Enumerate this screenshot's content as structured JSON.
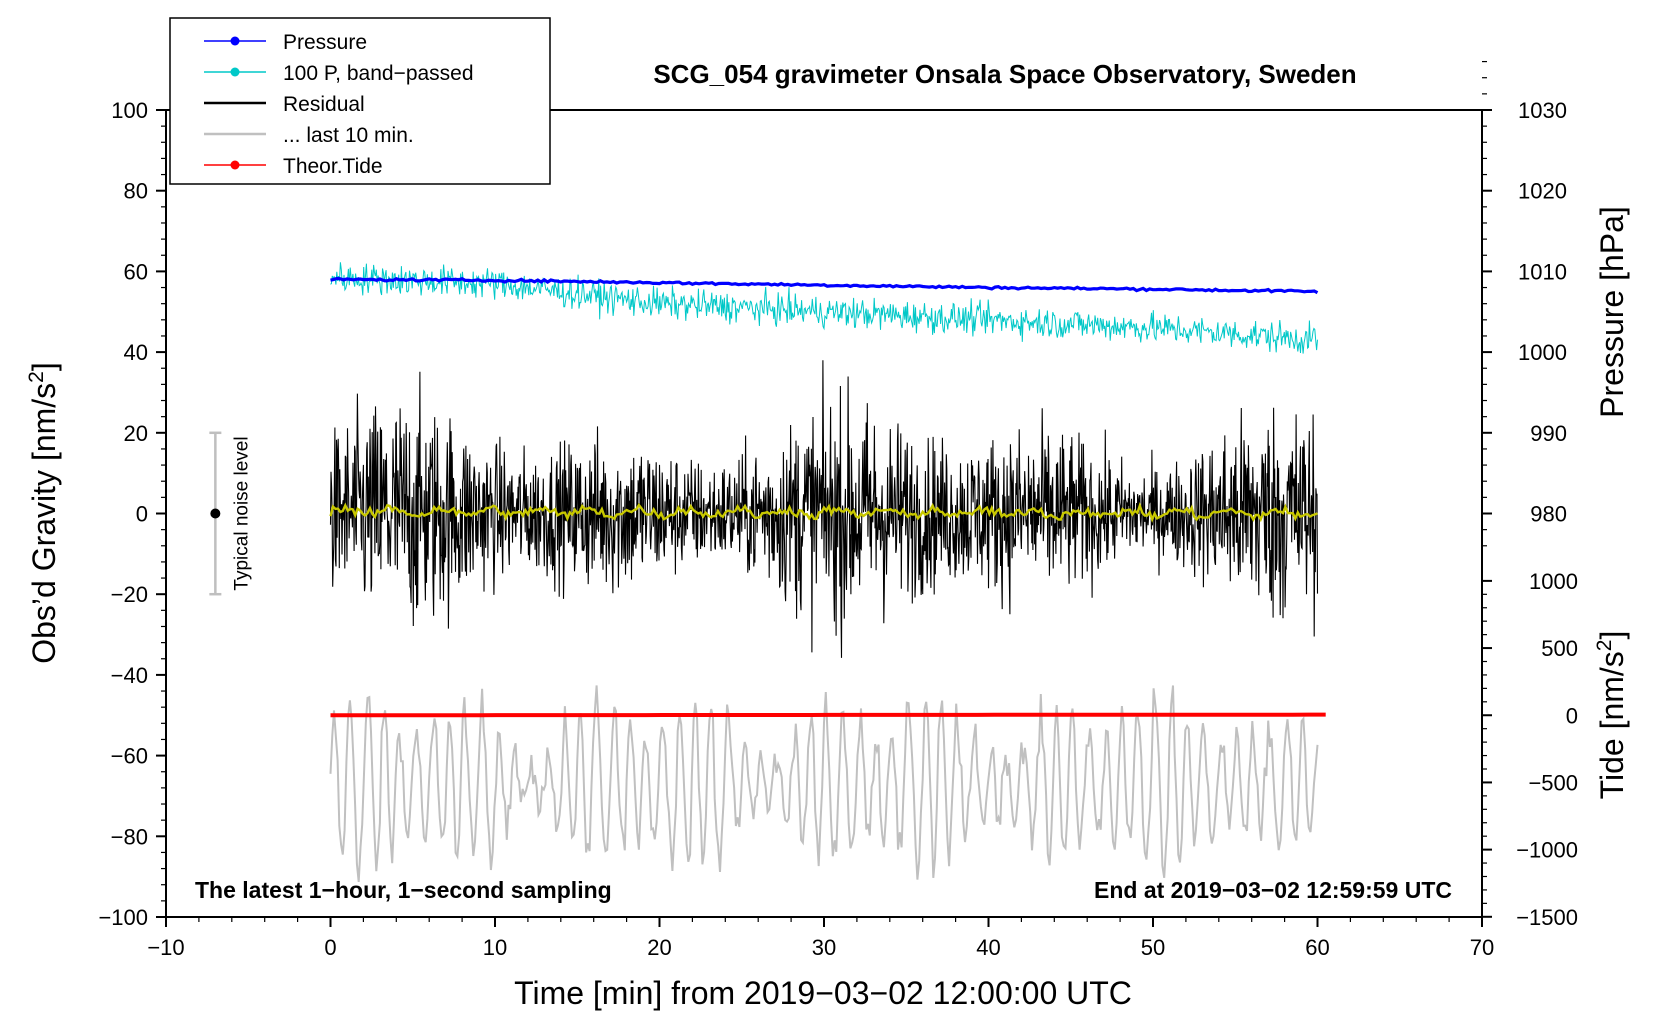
{
  "chart_data": {
    "type": "line",
    "title": "SCG_054 gravimeter Onsala Space Observatory, Sweden",
    "xlabel": "Time [min] from 2019−03−02 12:00:00 UTC",
    "ylabel_left": "Obs’d Gravity [nm/s2]",
    "ylabel_left_main": "Obs’d Gravity [nm/s",
    "ylabel_left_sup": "2",
    "ylabel_left_end": "]",
    "ylabel_right_pressure": "Pressure [hPa]",
    "ylabel_right_tide": "Tide [nm/s2]",
    "ylabel_right_tide_main": "Tide [nm/s",
    "ylabel_right_tide_sup": "2",
    "ylabel_right_tide_end": "]",
    "xlim": [
      -10,
      70
    ],
    "ylim_left": [
      -100,
      100
    ],
    "x_ticks": [
      -10,
      0,
      10,
      20,
      30,
      40,
      50,
      60,
      70
    ],
    "x_tick_labels": [
      "−10",
      "0",
      "10",
      "20",
      "30",
      "40",
      "50",
      "60",
      "70"
    ],
    "y_left_ticks": [
      100,
      80,
      60,
      40,
      20,
      0,
      -20,
      -40,
      -60,
      -80,
      -100
    ],
    "y_left_tick_labels": [
      "100",
      "80",
      "60",
      "40",
      "20",
      "0",
      "−20",
      "−40",
      "−60",
      "−80",
      "−100"
    ],
    "pressure_axis": {
      "ticks": [
        1030,
        1020,
        1010,
        1000,
        990,
        980
      ],
      "tick_labels": [
        "1030",
        "1020",
        "1010",
        "1000",
        "990",
        "980"
      ],
      "ref_value": 1010,
      "ref_gravity": 60,
      "gravity_per_hpa": 2.0
    },
    "tide_axis": {
      "ticks": [
        1000,
        500,
        0,
        -500,
        -1000,
        -1500
      ],
      "tick_labels": [
        "1000",
        "500",
        "0",
        "−500",
        "−1000",
        "−1500"
      ],
      "ref_value": 0,
      "ref_gravity": -50,
      "gravity_per_unit": 0.0333
    },
    "series": [
      {
        "name": "Pressure",
        "color": "#0000ff",
        "x": [
          0,
          10,
          20,
          30,
          40,
          50,
          60
        ],
        "y_hpa": [
          1009.0,
          1008.9,
          1008.6,
          1008.3,
          1008.0,
          1007.8,
          1007.5
        ]
      },
      {
        "name": "100 P, band−passed",
        "color": "#00c8c8",
        "x": [
          0,
          10,
          20,
          30,
          40,
          50,
          60
        ],
        "y_center": [
          58.5,
          57,
          52,
          50,
          48,
          46,
          43
        ],
        "amplitude": 3.5
      },
      {
        "name": "Residual",
        "color": "#000000",
        "x": [
          0,
          60
        ],
        "y_center": [
          0,
          0
        ],
        "amplitude": 24
      },
      {
        "name": "Residual smoothed",
        "color": "#c8c800",
        "x": [
          0,
          60
        ],
        "y_center": [
          0.5,
          0.0
        ],
        "amplitude": 1.0
      },
      {
        "name": "... last 10 min.",
        "color": "#c0c0c0",
        "x": [
          0,
          60
        ],
        "y_center": [
          -67,
          -67
        ],
        "amplitude": 18
      },
      {
        "name": "Theor.Tide",
        "color": "#ff0000",
        "x": [
          0,
          60.5
        ],
        "y_tide": [
          0,
          0
        ]
      }
    ],
    "legend": [
      {
        "label": "Pressure",
        "color": "#0000ff",
        "marker": true
      },
      {
        "label": "100 P, band−passed",
        "color": "#00c8c8",
        "marker": true
      },
      {
        "label": "Residual",
        "color": "#000000",
        "marker": false
      },
      {
        "label": "... last 10 min.",
        "color": "#c0c0c0",
        "marker": false
      },
      {
        "label": "Theor.Tide",
        "color": "#ff0000",
        "marker": true
      }
    ],
    "legend_position": "top-left",
    "noise_bar": {
      "x": -7,
      "center": 0,
      "half_range": 20,
      "label": "Typical noise level"
    },
    "annotations": {
      "bottom_left": "The latest 1−hour, 1−second sampling",
      "bottom_right": "End at 2019−03−02 12:59:59 UTC"
    },
    "grid": false
  }
}
